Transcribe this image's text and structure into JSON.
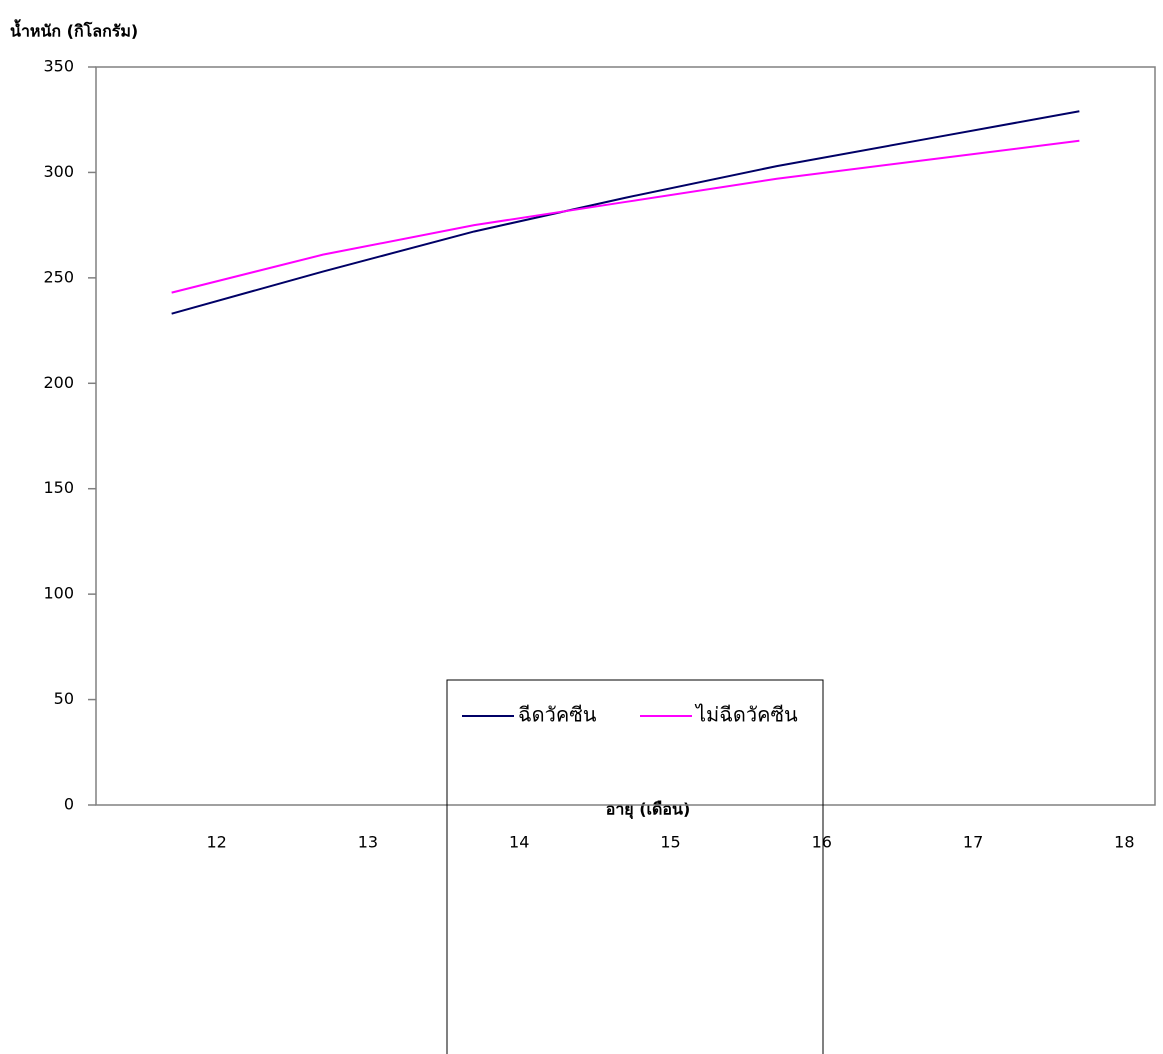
{
  "chart_data": {
    "type": "line",
    "y_label": "น้ำหนัก (กิโลกรัม)",
    "x_label": "อายุ (เดือน)",
    "categories": [
      "12",
      "13",
      "14",
      "15",
      "16",
      "17",
      "18"
    ],
    "series": [
      {
        "name": "ฉีดวัคซีน",
        "color": "#000066",
        "values": [
          233,
          253,
          272,
          288,
          303,
          316,
          329
        ]
      },
      {
        "name": "ไม่ฉีดวัคซีน",
        "color": "#ff00ff",
        "values": [
          243,
          261,
          275,
          286,
          297,
          306,
          315
        ]
      }
    ],
    "ylim": [
      0,
      350
    ],
    "yticks": [
      0,
      50,
      100,
      150,
      200,
      250,
      300,
      350
    ],
    "grid": false
  }
}
